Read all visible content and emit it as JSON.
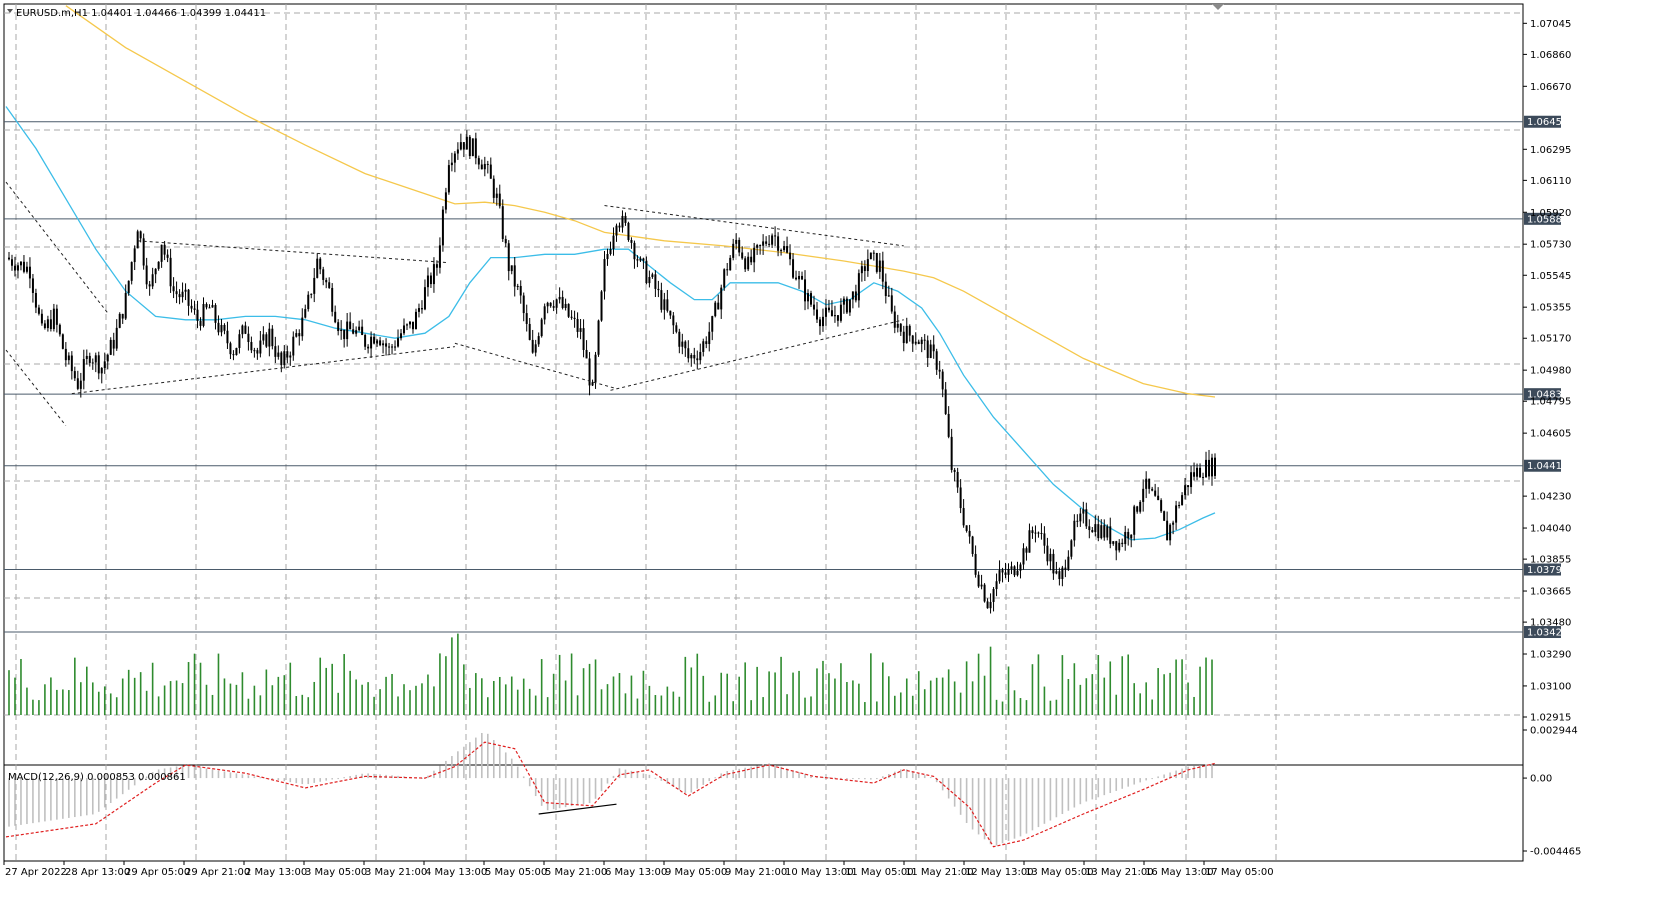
{
  "header": {
    "symbol_line": "EURUSD.m,H1  1.04401 1.04466 1.04399 1.04411"
  },
  "colors": {
    "candle": "#000000",
    "ma_fast": "#3cbde8",
    "ma_slow": "#f5c84c",
    "volume": "#2e8b2e",
    "hist": "#c0c0c0",
    "signal": "#e02020",
    "level_line": "#4a5a6a",
    "level_label_bg": "#3c4a5a",
    "grid": "#a8a8a8"
  },
  "chart_data": [
    {
      "type": "candlestick",
      "title": "EURUSD.m,H1",
      "ohlc_last": {
        "open": 1.04401,
        "high": 1.04466,
        "low": 1.04399,
        "close": 1.04411
      },
      "ylim": [
        1.02915,
        1.0716
      ],
      "y_ticks": [
        "1.07045",
        "1.06860",
        "1.06670",
        "1.06295",
        "1.06110",
        "1.05920",
        "1.05730",
        "1.05545",
        "1.05355",
        "1.05170",
        "1.04980",
        "1.04795",
        "1.04605",
        "1.04230",
        "1.04040",
        "1.03855",
        "1.03665",
        "1.03480",
        "1.03290",
        "1.03100",
        "1.02915"
      ],
      "levels": [
        {
          "value": 1.06459,
          "label": "1.06459"
        },
        {
          "value": 1.05881,
          "label": "1.05881"
        },
        {
          "value": 1.04837,
          "label": "1.04837"
        },
        {
          "value": 1.04411,
          "label": "1.04411"
        },
        {
          "value": 1.03793,
          "label": "1.03793"
        },
        {
          "value": 1.03421,
          "label": "1.03421"
        }
      ],
      "x_labels": [
        "27 Apr 2022",
        "28 Apr 13:00",
        "29 Apr 05:00",
        "29 Apr 21:00",
        "2 May 13:00",
        "3 May 05:00",
        "3 May 21:00",
        "4 May 13:00",
        "5 May 05:00",
        "5 May 21:00",
        "6 May 13:00",
        "9 May 05:00",
        "9 May 21:00",
        "10 May 13:00",
        "11 May 05:00",
        "11 May 21:00",
        "12 May 13:00",
        "13 May 05:00",
        "13 May 21:00",
        "16 May 13:00",
        "17 May 05:00"
      ],
      "close_path": [
        [
          0,
          1.0565
        ],
        [
          8,
          1.0558
        ],
        [
          12,
          1.052
        ],
        [
          16,
          1.053
        ],
        [
          20,
          1.0505
        ],
        [
          24,
          1.049
        ],
        [
          28,
          1.0508
        ],
        [
          32,
          1.05
        ],
        [
          36,
          1.0515
        ],
        [
          40,
          1.054
        ],
        [
          44,
          1.0585
        ],
        [
          48,
          1.0545
        ],
        [
          52,
          1.0575
        ],
        [
          56,
          1.0545
        ],
        [
          60,
          1.054
        ],
        [
          64,
          1.0528
        ],
        [
          68,
          1.0535
        ],
        [
          72,
          1.052
        ],
        [
          76,
          1.051
        ],
        [
          80,
          1.0523
        ],
        [
          84,
          1.0508
        ],
        [
          88,
          1.052
        ],
        [
          92,
          1.05
        ],
        [
          96,
          1.0515
        ],
        [
          100,
          1.053
        ],
        [
          104,
          1.0563
        ],
        [
          108,
          1.0545
        ],
        [
          112,
          1.052
        ],
        [
          116,
          1.0522
        ],
        [
          120,
          1.0515
        ],
        [
          124,
          1.052
        ],
        [
          128,
          1.051
        ],
        [
          132,
          1.052
        ],
        [
          136,
          1.0525
        ],
        [
          140,
          1.0545
        ],
        [
          144,
          1.056
        ],
        [
          148,
          1.0625
        ],
        [
          152,
          1.0635
        ],
        [
          156,
          1.063
        ],
        [
          160,
          1.062
        ],
        [
          164,
          1.06
        ],
        [
          168,
          1.056
        ],
        [
          172,
          1.054
        ],
        [
          176,
          1.0505
        ],
        [
          180,
          1.054
        ],
        [
          184,
          1.054
        ],
        [
          188,
          1.053
        ],
        [
          192,
          1.052
        ],
        [
          196,
          1.0485
        ],
        [
          200,
          1.056
        ],
        [
          204,
          1.059
        ],
        [
          208,
          1.058
        ],
        [
          212,
          1.056
        ],
        [
          216,
          1.055
        ],
        [
          220,
          1.0535
        ],
        [
          224,
          1.052
        ],
        [
          228,
          1.0505
        ],
        [
          232,
          1.051
        ],
        [
          236,
          1.0525
        ],
        [
          240,
          1.0555
        ],
        [
          244,
          1.0575
        ],
        [
          248,
          1.056
        ],
        [
          252,
          1.057
        ],
        [
          256,
          1.058
        ],
        [
          260,
          1.057
        ],
        [
          264,
          1.0555
        ],
        [
          268,
          1.054
        ],
        [
          272,
          1.053
        ],
        [
          276,
          1.053
        ],
        [
          280,
          1.0535
        ],
        [
          284,
          1.0545
        ],
        [
          288,
          1.0565
        ],
        [
          292,
          1.056
        ],
        [
          296,
          1.053
        ],
        [
          300,
          1.052
        ],
        [
          304,
          1.0518
        ],
        [
          308,
          1.051
        ],
        [
          312,
          1.05
        ],
        [
          316,
          1.044
        ],
        [
          320,
          1.041
        ],
        [
          324,
          1.038
        ],
        [
          328,
          1.036
        ],
        [
          332,
          1.0375
        ],
        [
          336,
          1.0378
        ],
        [
          340,
          1.039
        ],
        [
          344,
          1.0405
        ],
        [
          348,
          1.039
        ],
        [
          352,
          1.037
        ],
        [
          356,
          1.04
        ],
        [
          360,
          1.041
        ],
        [
          364,
          1.0405
        ],
        [
          368,
          1.04
        ],
        [
          372,
          1.0395
        ],
        [
          376,
          1.0405
        ],
        [
          380,
          1.043
        ],
        [
          384,
          1.042
        ],
        [
          388,
          1.04
        ],
        [
          392,
          1.042
        ],
        [
          396,
          1.0435
        ],
        [
          400,
          1.044
        ],
        [
          404,
          1.0441
        ]
      ],
      "ma_fast": [
        [
          0,
          1.0655
        ],
        [
          10,
          1.063
        ],
        [
          20,
          1.06
        ],
        [
          30,
          1.057
        ],
        [
          40,
          1.0545
        ],
        [
          50,
          1.053
        ],
        [
          60,
          1.0528
        ],
        [
          70,
          1.0528
        ],
        [
          80,
          1.053
        ],
        [
          90,
          1.053
        ],
        [
          100,
          1.0528
        ],
        [
          110,
          1.0523
        ],
        [
          120,
          1.052
        ],
        [
          130,
          1.0517
        ],
        [
          140,
          1.052
        ],
        [
          148,
          1.053
        ],
        [
          155,
          1.055
        ],
        [
          162,
          1.0565
        ],
        [
          170,
          1.0565
        ],
        [
          180,
          1.0567
        ],
        [
          190,
          1.0567
        ],
        [
          200,
          1.057
        ],
        [
          208,
          1.057
        ],
        [
          215,
          1.056
        ],
        [
          222,
          1.055
        ],
        [
          230,
          1.054
        ],
        [
          236,
          1.054
        ],
        [
          242,
          1.055
        ],
        [
          250,
          1.055
        ],
        [
          258,
          1.055
        ],
        [
          266,
          1.0545
        ],
        [
          274,
          1.0537
        ],
        [
          282,
          1.054
        ],
        [
          290,
          1.055
        ],
        [
          298,
          1.0545
        ],
        [
          306,
          1.0535
        ],
        [
          312,
          1.052
        ],
        [
          320,
          1.0495
        ],
        [
          330,
          1.047
        ],
        [
          340,
          1.045
        ],
        [
          350,
          1.043
        ],
        [
          360,
          1.0415
        ],
        [
          368,
          1.0405
        ],
        [
          376,
          1.0397
        ],
        [
          384,
          1.0398
        ],
        [
          392,
          1.0403
        ],
        [
          400,
          1.041
        ],
        [
          404,
          1.0413
        ]
      ],
      "ma_slow": [
        [
          20,
          1.0715
        ],
        [
          40,
          1.069
        ],
        [
          60,
          1.067
        ],
        [
          80,
          1.065
        ],
        [
          100,
          1.0632
        ],
        [
          120,
          1.0615
        ],
        [
          140,
          1.0603
        ],
        [
          150,
          1.0597
        ],
        [
          160,
          1.0598
        ],
        [
          170,
          1.0596
        ],
        [
          180,
          1.0592
        ],
        [
          190,
          1.0587
        ],
        [
          200,
          1.058
        ],
        [
          220,
          1.0575
        ],
        [
          240,
          1.0572
        ],
        [
          260,
          1.0568
        ],
        [
          280,
          1.0563
        ],
        [
          300,
          1.0557
        ],
        [
          310,
          1.0553
        ],
        [
          320,
          1.0545
        ],
        [
          340,
          1.0525
        ],
        [
          360,
          1.0505
        ],
        [
          380,
          1.049
        ],
        [
          395,
          1.0484
        ],
        [
          404,
          1.0482
        ]
      ]
    },
    {
      "type": "bar",
      "title": "",
      "series": [
        {
          "name": "",
          "values": []
        }
      ],
      "note_shape": "tick volume histogram"
    },
    {
      "type": "line",
      "title": "MACD(12,26,9) 0.000853 0.000861",
      "y_ticks": [
        "0.002944",
        "0.00",
        "-0.004465"
      ],
      "ylim": [
        -0.004465,
        0.002944
      ],
      "macd_points": [
        [
          0,
          -0.003
        ],
        [
          30,
          -0.0022
        ],
        [
          50,
          0.0005
        ],
        [
          60,
          0.0008
        ],
        [
          80,
          0.0002
        ],
        [
          100,
          -0.0004
        ],
        [
          120,
          0.0003
        ],
        [
          140,
          0.0
        ],
        [
          150,
          0.0015
        ],
        [
          160,
          0.0029
        ],
        [
          170,
          0.001
        ],
        [
          180,
          -0.002
        ],
        [
          196,
          -0.0015
        ],
        [
          205,
          0.0006
        ],
        [
          215,
          0.0002
        ],
        [
          228,
          -0.001
        ],
        [
          240,
          0.0004
        ],
        [
          255,
          0.0009
        ],
        [
          270,
          0.0001
        ],
        [
          290,
          -0.0001
        ],
        [
          300,
          0.0006
        ],
        [
          310,
          0.0
        ],
        [
          322,
          -0.003
        ],
        [
          330,
          -0.0042
        ],
        [
          340,
          -0.0035
        ],
        [
          360,
          -0.0015
        ],
        [
          380,
          -0.0002
        ],
        [
          395,
          0.0007
        ],
        [
          404,
          0.0009
        ]
      ],
      "signal_points": [
        [
          0,
          -0.0036
        ],
        [
          30,
          -0.0028
        ],
        [
          50,
          -0.0003
        ],
        [
          60,
          0.0008
        ],
        [
          80,
          0.0003
        ],
        [
          100,
          -0.0006
        ],
        [
          120,
          0.0001
        ],
        [
          140,
          0.0
        ],
        [
          150,
          0.0007
        ],
        [
          160,
          0.0022
        ],
        [
          170,
          0.0018
        ],
        [
          180,
          -0.0015
        ],
        [
          196,
          -0.0017
        ],
        [
          205,
          0.0002
        ],
        [
          215,
          0.0005
        ],
        [
          228,
          -0.0011
        ],
        [
          240,
          0.0002
        ],
        [
          255,
          0.0008
        ],
        [
          270,
          0.0001
        ],
        [
          290,
          -0.0003
        ],
        [
          300,
          0.0005
        ],
        [
          310,
          0.0001
        ],
        [
          322,
          -0.0018
        ],
        [
          330,
          -0.0042
        ],
        [
          340,
          -0.0038
        ],
        [
          360,
          -0.0022
        ],
        [
          380,
          -0.0007
        ],
        [
          395,
          0.0005
        ],
        [
          404,
          0.0009
        ]
      ]
    }
  ]
}
